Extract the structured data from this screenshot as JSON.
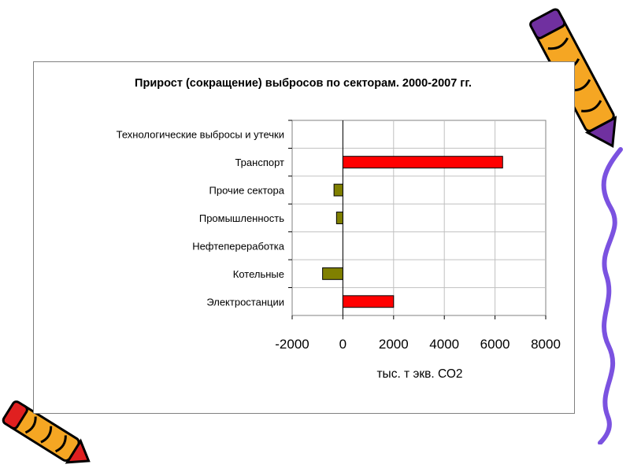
{
  "chart_data": {
    "type": "bar",
    "orientation": "horizontal",
    "title": "Прирост (сокращение) выбросов по секторам. 2000-2007 гг.",
    "xlabel": "тыс. т экв. СО2",
    "ylabel": "",
    "categories": [
      "Технологические выбросы и утечки",
      "Транспорт",
      "Прочие сектора",
      "Промышленность",
      "Нефтепереработка",
      "Котельные",
      "Электростанции"
    ],
    "values": [
      0,
      6300,
      -350,
      -250,
      0,
      -800,
      2000
    ],
    "xlim": [
      -2000,
      8000
    ],
    "xticks": [
      "-2000",
      "0",
      "2000",
      "4000",
      "6000",
      "8000"
    ],
    "grid": true,
    "legend": "none",
    "colors": {
      "positive": "#ff0000",
      "negative": "#808000",
      "grid": "#c0c0c0",
      "frame": "#808080"
    }
  },
  "decorations": {
    "top_right": "crayon-icon",
    "right_edge": "squiggle-line",
    "bottom_left": "crayon-icon"
  }
}
